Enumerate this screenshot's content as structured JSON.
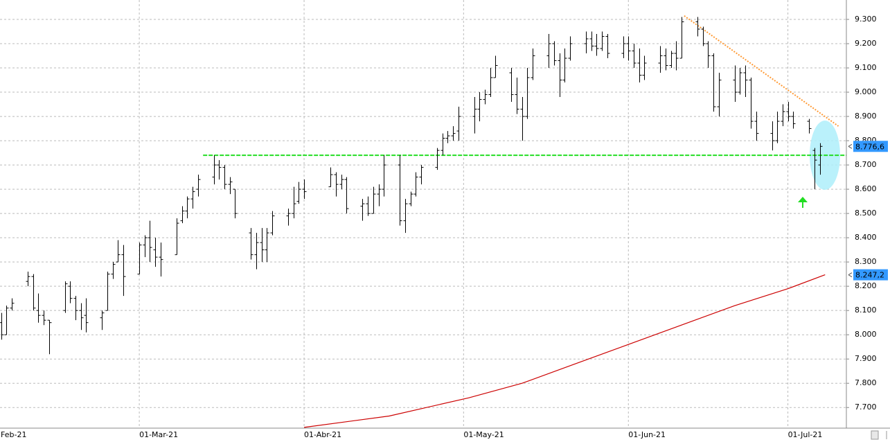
{
  "chart_data": {
    "type": "ohlc",
    "xlim": [
      1.8,
      161
    ],
    "ylim": [
      7615,
      9380
    ],
    "xticks": [
      {
        "value": 0,
        "label": "Feb-21"
      },
      {
        "value": 28,
        "label": "01-Mar-21"
      },
      {
        "value": 59,
        "label": "01-Abr-21"
      },
      {
        "value": 89,
        "label": "01-May-21"
      },
      {
        "value": 120,
        "label": "01-Jun-21"
      },
      {
        "value": 150,
        "label": "01-Jul-21"
      }
    ],
    "yticks": [
      {
        "value": 7700,
        "label": "7.700"
      },
      {
        "value": 7800,
        "label": "7.800"
      },
      {
        "value": 7900,
        "label": "7.900"
      },
      {
        "value": 8000,
        "label": "8.000"
      },
      {
        "value": 8100,
        "label": "8.100"
      },
      {
        "value": 8200,
        "label": "8.200"
      },
      {
        "value": 8300,
        "label": "8.300"
      },
      {
        "value": 8400,
        "label": "8.400"
      },
      {
        "value": 8500,
        "label": "8.500"
      },
      {
        "value": 8600,
        "label": "8.600"
      },
      {
        "value": 8700,
        "label": "8.700"
      },
      {
        "value": 8800,
        "label": "8.800"
      },
      {
        "value": 8900,
        "label": "8.900"
      },
      {
        "value": 9000,
        "label": "9.000"
      },
      {
        "value": 9100,
        "label": "9.100"
      },
      {
        "value": 9200,
        "label": "9.200"
      },
      {
        "value": 9300,
        "label": "9.300"
      }
    ],
    "grid": true,
    "color": "#000000",
    "x": [
      2,
      3,
      4,
      7,
      8,
      9,
      10,
      11,
      14,
      15,
      16,
      17,
      18,
      21,
      22,
      23,
      24,
      25,
      28,
      29,
      30,
      31,
      32,
      35,
      36,
      37,
      38,
      39,
      42,
      43,
      44,
      45,
      46,
      49,
      50,
      51,
      52,
      53,
      56,
      57,
      58,
      59,
      64,
      65,
      66,
      67,
      70,
      71,
      72,
      73,
      74,
      77,
      78,
      79,
      80,
      81,
      84,
      85,
      86,
      87,
      88,
      91,
      92,
      93,
      94,
      95,
      98,
      99,
      100,
      101,
      102,
      105,
      106,
      107,
      108,
      109,
      112,
      113,
      114,
      115,
      116,
      119,
      120,
      121,
      122,
      123,
      126,
      127,
      128,
      129,
      130,
      133,
      134,
      135,
      136,
      137,
      140,
      141,
      142,
      143,
      144,
      147,
      148,
      149,
      150,
      151,
      154,
      155,
      156
    ],
    "open": [
      8050,
      8000,
      8110,
      8220,
      8240,
      8100,
      8080,
      8060,
      8100,
      8200,
      8150,
      8100,
      8080,
      8070,
      8100,
      8250,
      8300,
      8330,
      8250,
      8370,
      8400,
      8350,
      8320,
      8330,
      8470,
      8510,
      8560,
      8600,
      8650,
      8700,
      8690,
      8620,
      8600,
      8420,
      8330,
      8380,
      8350,
      8420,
      8490,
      8500,
      8550,
      8600,
      8610,
      8660,
      8620,
      8640,
      8530,
      8540,
      8500,
      8580,
      8600,
      8700,
      8470,
      8540,
      8580,
      8650,
      8690,
      8760,
      8810,
      8820,
      8840,
      8900,
      8930,
      8970,
      8990,
      9060,
      9080,
      8990,
      8930,
      8900,
      9060,
      9150,
      9200,
      9130,
      9050,
      9140,
      9200,
      9220,
      9190,
      9180,
      9230,
      9160,
      9200,
      9170,
      9120,
      9070,
      9120,
      9150,
      9110,
      9160,
      9140,
      9290,
      9260,
      9200,
      9150,
      8940,
      9050,
      9000,
      9080,
      9050,
      8880,
      8830,
      8800,
      8880,
      8920,
      8900,
      8880,
      8760,
      8700
    ],
    "high": [
      8090,
      8120,
      8150,
      8260,
      8250,
      8170,
      8100,
      8060,
      8220,
      8220,
      8160,
      8130,
      8150,
      8100,
      8260,
      8300,
      8390,
      8370,
      8380,
      8410,
      8470,
      8400,
      8380,
      8480,
      8530,
      8570,
      8610,
      8660,
      8740,
      8720,
      8700,
      8650,
      8600,
      8440,
      8420,
      8440,
      8440,
      8510,
      8520,
      8610,
      8630,
      8640,
      8690,
      8670,
      8660,
      8650,
      8560,
      8570,
      8610,
      8620,
      8740,
      8740,
      8560,
      8590,
      8670,
      8700,
      8770,
      8830,
      8840,
      8860,
      8940,
      8980,
      9000,
      9010,
      9100,
      9150,
      9100,
      9060,
      8980,
      9100,
      9180,
      9240,
      9210,
      9160,
      9180,
      9230,
      9250,
      9250,
      9240,
      9250,
      9240,
      9230,
      9230,
      9200,
      9180,
      9150,
      9190,
      9180,
      9170,
      9210,
      9310,
      9310,
      9270,
      9210,
      9160,
      9080,
      9110,
      9100,
      9110,
      9060,
      8920,
      8880,
      8920,
      8950,
      8960,
      8920,
      8890,
      8770,
      8790
    ],
    "low": [
      7980,
      8000,
      8100,
      8200,
      8100,
      8050,
      8040,
      7920,
      8090,
      8130,
      8060,
      8020,
      8010,
      8020,
      8100,
      8230,
      8300,
      8160,
      8250,
      8320,
      8300,
      8280,
      8240,
      8330,
      8460,
      8480,
      8520,
      8570,
      8620,
      8640,
      8600,
      8580,
      8480,
      8310,
      8270,
      8300,
      8300,
      8410,
      8450,
      8480,
      8540,
      8560,
      8610,
      8570,
      8600,
      8500,
      8470,
      8490,
      8500,
      8530,
      8570,
      8450,
      8420,
      8530,
      8570,
      8620,
      8680,
      8740,
      8790,
      8800,
      8800,
      8830,
      8880,
      8950,
      8980,
      9060,
      8960,
      8910,
      8800,
      8890,
      9050,
      9100,
      9110,
      8980,
      9040,
      9130,
      9160,
      9170,
      9150,
      9170,
      9140,
      9140,
      9130,
      9100,
      9040,
      9050,
      9080,
      9090,
      9100,
      9090,
      9140,
      9230,
      9190,
      9100,
      8920,
      8900,
      8960,
      8990,
      8980,
      8850,
      8800,
      8760,
      8790,
      8860,
      8880,
      8850,
      8830,
      8600,
      8660
    ],
    "close": [
      8000,
      8110,
      8130,
      8240,
      8110,
      8080,
      8060,
      8050,
      8210,
      8150,
      8100,
      8070,
      8050,
      8090,
      8250,
      8290,
      8330,
      8240,
      8370,
      8400,
      8360,
      8320,
      8310,
      8460,
      8510,
      8560,
      8590,
      8640,
      8700,
      8690,
      8620,
      8630,
      8500,
      8330,
      8380,
      8350,
      8420,
      8490,
      8500,
      8540,
      8600,
      8590,
      8660,
      8620,
      8640,
      8520,
      8540,
      8500,
      8580,
      8600,
      8700,
      8470,
      8540,
      8580,
      8650,
      8690,
      8760,
      8810,
      8820,
      8830,
      8900,
      8930,
      8970,
      8990,
      9060,
      9110,
      8990,
      8930,
      8900,
      9060,
      9150,
      9200,
      9130,
      9050,
      9140,
      9200,
      9220,
      9190,
      9180,
      9230,
      9160,
      9200,
      9170,
      9120,
      9070,
      9120,
      9150,
      9110,
      9160,
      9140,
      9290,
      9260,
      9200,
      9150,
      8940,
      9050,
      9000,
      9080,
      9050,
      8880,
      8830,
      8800,
      8880,
      8920,
      8900,
      8870,
      8850,
      8720,
      8776.6
    ],
    "moving_average": {
      "color": "#cc0000",
      "x": [
        59,
        75,
        90,
        100,
        110,
        120,
        130,
        140,
        150,
        157
      ],
      "values": [
        7618,
        7665,
        7740,
        7800,
        7880,
        7960,
        8040,
        8120,
        8190,
        8247.2
      ]
    },
    "support": {
      "color": "#22dd22",
      "x": [
        40,
        161
      ],
      "values": [
        8740,
        8740
      ]
    },
    "trendline": {
      "color": "#ff9933",
      "x": [
        130.5,
        159.5
      ],
      "values": [
        9315,
        8860
      ]
    },
    "price_tags": [
      {
        "value": 8776.6,
        "label": "8.776,6",
        "color": "#3399ff"
      },
      {
        "value": 8247.2,
        "label": "8.247,2",
        "color": "#3399ff"
      }
    ]
  }
}
